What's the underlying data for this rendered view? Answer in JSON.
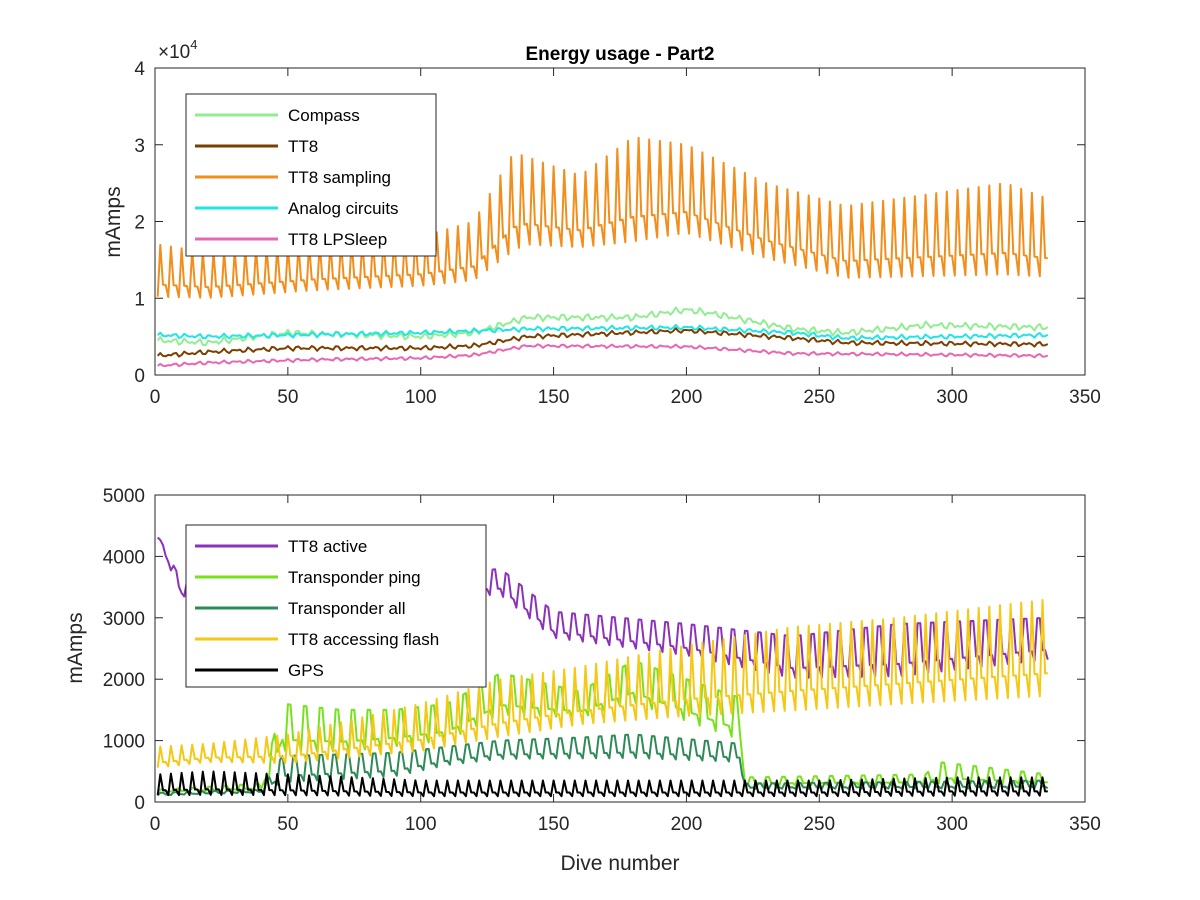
{
  "chart_data": [
    {
      "type": "line",
      "title": "Energy usage - Part2",
      "xlabel": "",
      "ylabel": "mAmps",
      "y_exponent_label": "×10",
      "y_exponent": "4",
      "xlim": [
        0,
        350
      ],
      "ylim": [
        0,
        40000
      ],
      "x_ticks": [
        0,
        50,
        100,
        150,
        200,
        250,
        300,
        350
      ],
      "y_ticks": [
        0,
        10000,
        20000,
        30000,
        40000
      ],
      "y_tick_labels": [
        "0",
        "1",
        "2",
        "3",
        "4"
      ],
      "grid": false,
      "legend_position": "top-left",
      "x_range": [
        1,
        336
      ],
      "series": [
        {
          "name": "Compass",
          "color": "#90EE90",
          "style": "wobble",
          "knots": [
            [
              1,
              4500
            ],
            [
              20,
              4200
            ],
            [
              50,
              5500
            ],
            [
              100,
              5000
            ],
            [
              120,
              5500
            ],
            [
              140,
              7500
            ],
            [
              180,
              7500
            ],
            [
              200,
              8500
            ],
            [
              210,
              8000
            ],
            [
              240,
              6000
            ],
            [
              260,
              5500
            ],
            [
              290,
              6500
            ],
            [
              336,
              6200
            ]
          ],
          "amp": 500
        },
        {
          "name": "TT8",
          "color": "#7B3F00",
          "style": "wobble",
          "knots": [
            [
              1,
              2500
            ],
            [
              20,
              3000
            ],
            [
              50,
              3500
            ],
            [
              100,
              3500
            ],
            [
              120,
              3800
            ],
            [
              140,
              5000
            ],
            [
              200,
              5800
            ],
            [
              240,
              4800
            ],
            [
              260,
              4200
            ],
            [
              336,
              4000
            ]
          ],
          "amp": 350
        },
        {
          "name": "TT8 sampling",
          "color": "#F28E1C",
          "style": "spiky",
          "base": [
            [
              1,
              9000
            ],
            [
              20,
              9000
            ],
            [
              60,
              10000
            ],
            [
              100,
              10500
            ],
            [
              120,
              11000
            ],
            [
              140,
              15000
            ],
            [
              180,
              15000
            ],
            [
              200,
              16500
            ],
            [
              230,
              13500
            ],
            [
              260,
              11000
            ],
            [
              336,
              11000
            ]
          ],
          "peak": [
            [
              1,
              17000
            ],
            [
              20,
              16000
            ],
            [
              60,
              17000
            ],
            [
              100,
              18000
            ],
            [
              120,
              20000
            ],
            [
              135,
              29000
            ],
            [
              160,
              26000
            ],
            [
              180,
              31000
            ],
            [
              200,
              30000
            ],
            [
              230,
              25000
            ],
            [
              260,
              22000
            ],
            [
              320,
              25000
            ],
            [
              336,
              23000
            ]
          ],
          "period": 4
        },
        {
          "name": "Analog circuits",
          "color": "#1FE5E5",
          "style": "wobble",
          "knots": [
            [
              1,
              5200
            ],
            [
              20,
              5000
            ],
            [
              50,
              5200
            ],
            [
              100,
              5500
            ],
            [
              140,
              6000
            ],
            [
              200,
              6200
            ],
            [
              240,
              5500
            ],
            [
              260,
              4800
            ],
            [
              336,
              5200
            ]
          ],
          "amp": 350
        },
        {
          "name": "TT8 LPSleep",
          "color": "#E867B0",
          "style": "wobble",
          "knots": [
            [
              1,
              1200
            ],
            [
              20,
              1600
            ],
            [
              60,
              2000
            ],
            [
              100,
              2200
            ],
            [
              120,
              2600
            ],
            [
              140,
              3800
            ],
            [
              200,
              3700
            ],
            [
              240,
              2800
            ],
            [
              280,
              2700
            ],
            [
              336,
              2500
            ]
          ],
          "amp": 250
        }
      ]
    },
    {
      "type": "line",
      "title": "",
      "xlabel": "Dive number",
      "ylabel": "mAmps",
      "xlim": [
        0,
        350
      ],
      "ylim": [
        0,
        5000
      ],
      "x_ticks": [
        0,
        50,
        100,
        150,
        200,
        250,
        300,
        350
      ],
      "y_ticks": [
        0,
        1000,
        2000,
        3000,
        4000,
        5000
      ],
      "y_tick_labels": [
        "0",
        "1000",
        "2000",
        "3000",
        "4000",
        "5000"
      ],
      "grid": false,
      "legend_position": "top-left",
      "x_range": [
        1,
        336
      ],
      "series": [
        {
          "name": "TT8 active",
          "color": "#8B32B9",
          "style": "spiky",
          "base": [
            [
              1,
              4300
            ],
            [
              10,
              3300
            ],
            [
              50,
              3300
            ],
            [
              110,
              3300
            ],
            [
              130,
              3300
            ],
            [
              150,
              2600
            ],
            [
              200,
              2300
            ],
            [
              240,
              1900
            ],
            [
              280,
              1900
            ],
            [
              336,
              2200
            ]
          ],
          "peak": [
            [
              1,
              4350
            ],
            [
              10,
              3600
            ],
            [
              50,
              3600
            ],
            [
              110,
              3700
            ],
            [
              130,
              3800
            ],
            [
              150,
              3100
            ],
            [
              200,
              2900
            ],
            [
              240,
              2700
            ],
            [
              280,
              2900
            ],
            [
              336,
              3000
            ]
          ],
          "period": 5
        },
        {
          "name": "Transponder ping",
          "color": "#77E21A",
          "style": "spiky",
          "base": [
            [
              1,
              150
            ],
            [
              40,
              180
            ],
            [
              48,
              700
            ],
            [
              70,
              700
            ],
            [
              90,
              800
            ],
            [
              110,
              900
            ],
            [
              130,
              1300
            ],
            [
              160,
              1300
            ],
            [
              180,
              1500
            ],
            [
              220,
              900
            ],
            [
              222,
              250
            ],
            [
              336,
              250
            ]
          ],
          "peak": [
            [
              1,
              200
            ],
            [
              40,
              300
            ],
            [
              48,
              1600
            ],
            [
              70,
              1500
            ],
            [
              90,
              1500
            ],
            [
              110,
              1600
            ],
            [
              130,
              2100
            ],
            [
              160,
              1800
            ],
            [
              180,
              2300
            ],
            [
              220,
              1700
            ],
            [
              222,
              400
            ],
            [
              290,
              450
            ],
            [
              295,
              650
            ],
            [
              336,
              450
            ]
          ],
          "period": 6
        },
        {
          "name": "Transponder all",
          "color": "#2E8B57",
          "style": "spiky",
          "base": [
            [
              1,
              100
            ],
            [
              40,
              150
            ],
            [
              48,
              250
            ],
            [
              90,
              350
            ],
            [
              110,
              550
            ],
            [
              130,
              650
            ],
            [
              160,
              650
            ],
            [
              180,
              650
            ],
            [
              220,
              600
            ],
            [
              222,
              200
            ],
            [
              336,
              200
            ]
          ],
          "peak": [
            [
              1,
              150
            ],
            [
              40,
              200
            ],
            [
              48,
              750
            ],
            [
              90,
              800
            ],
            [
              110,
              900
            ],
            [
              130,
              1000
            ],
            [
              160,
              1050
            ],
            [
              180,
              1100
            ],
            [
              220,
              950
            ],
            [
              222,
              300
            ],
            [
              336,
              350
            ]
          ],
          "period": 5
        },
        {
          "name": "TT8 accessing flash",
          "color": "#F5C816",
          "style": "spiky",
          "base": [
            [
              1,
              500
            ],
            [
              20,
              600
            ],
            [
              50,
              550
            ],
            [
              100,
              700
            ],
            [
              130,
              900
            ],
            [
              160,
              1100
            ],
            [
              200,
              1200
            ],
            [
              240,
              1250
            ],
            [
              280,
              1350
            ],
            [
              336,
              1450
            ]
          ],
          "peak": [
            [
              1,
              900
            ],
            [
              20,
              950
            ],
            [
              50,
              1100
            ],
            [
              100,
              1600
            ],
            [
              130,
              2000
            ],
            [
              160,
              2200
            ],
            [
              200,
              2550
            ],
            [
              240,
              2850
            ],
            [
              280,
              3000
            ],
            [
              336,
              3300
            ]
          ],
          "period": 4
        },
        {
          "name": "GPS",
          "color": "#000000",
          "style": "spiky",
          "base": [
            [
              1,
              50
            ],
            [
              336,
              50
            ]
          ],
          "peak": [
            [
              1,
              450
            ],
            [
              20,
              500
            ],
            [
              50,
              450
            ],
            [
              100,
              350
            ],
            [
              150,
              350
            ],
            [
              200,
              350
            ],
            [
              250,
              350
            ],
            [
              300,
              400
            ],
            [
              336,
              400
            ]
          ],
          "period": 4
        }
      ]
    }
  ]
}
